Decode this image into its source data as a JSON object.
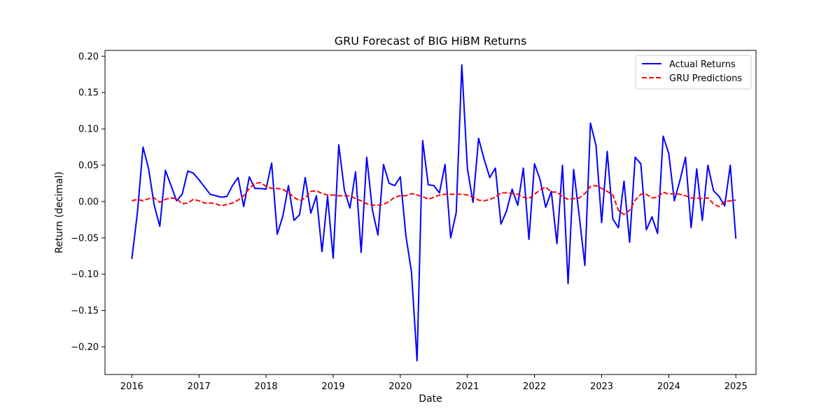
{
  "chart_data": {
    "type": "line",
    "title": "GRU Forecast of BIG HiBM Returns",
    "xlabel": "Date",
    "ylabel": "Return (decimal)",
    "xlim": [
      2015.6,
      2025.3
    ],
    "ylim": [
      -0.238,
      0.208
    ],
    "x_ticks": [
      2016,
      2017,
      2018,
      2019,
      2020,
      2021,
      2022,
      2023,
      2024,
      2025
    ],
    "x_tick_labels": [
      "2016",
      "2017",
      "2018",
      "2019",
      "2020",
      "2021",
      "2022",
      "2023",
      "2024",
      "2025"
    ],
    "y_ticks": [
      -0.2,
      -0.15,
      -0.1,
      -0.05,
      0.0,
      0.05,
      0.1,
      0.15,
      0.2
    ],
    "y_tick_labels": [
      "−0.20",
      "−0.15",
      "−0.10",
      "−0.05",
      "0.00",
      "0.05",
      "0.10",
      "0.15",
      "0.20"
    ],
    "grid": false,
    "legend_position": "top-right",
    "x_start": "2016-01",
    "x_step": "monthly",
    "series": [
      {
        "name": "Actual Returns",
        "color": "#0000ff",
        "dash": "solid",
        "values": [
          -0.079,
          -0.015,
          0.075,
          0.045,
          -0.005,
          -0.034,
          0.043,
          0.022,
          0.001,
          0.01,
          0.042,
          0.039,
          0.03,
          0.02,
          0.01,
          0.008,
          0.006,
          0.007,
          0.022,
          0.033,
          -0.007,
          0.034,
          0.018,
          0.018,
          0.017,
          0.053,
          -0.045,
          -0.02,
          0.022,
          -0.026,
          -0.018,
          0.033,
          -0.016,
          0.008,
          -0.069,
          0.007,
          -0.078,
          0.078,
          0.016,
          -0.009,
          0.041,
          -0.07,
          0.061,
          -0.011,
          -0.046,
          0.051,
          0.025,
          0.022,
          0.034,
          -0.047,
          -0.097,
          -0.219,
          0.084,
          0.023,
          0.022,
          0.012,
          0.051,
          -0.05,
          -0.015,
          0.188,
          0.045,
          -0.001,
          0.087,
          0.058,
          0.033,
          0.046,
          -0.031,
          -0.013,
          0.017,
          -0.005,
          0.046,
          -0.052,
          0.052,
          0.03,
          -0.008,
          0.014,
          -0.058,
          0.05,
          -0.113,
          0.044,
          -0.02,
          -0.088,
          0.108,
          0.077,
          -0.029,
          0.069,
          -0.024,
          -0.036,
          0.028,
          -0.056,
          0.061,
          0.052,
          -0.039,
          -0.021,
          -0.044,
          0.09,
          0.066,
          0.001,
          0.029,
          0.061,
          -0.036,
          0.045,
          -0.026,
          0.05,
          0.015,
          0.007,
          -0.006,
          0.05,
          -0.051
        ]
      },
      {
        "name": "GRU Predictions",
        "color": "#ff0000",
        "dash": "dashed",
        "values": [
          0.001,
          0.003,
          0.001,
          0.004,
          0.005,
          -0.001,
          0.003,
          0.005,
          0.004,
          -0.003,
          -0.002,
          0.003,
          0.001,
          -0.002,
          -0.002,
          -0.003,
          -0.006,
          -0.004,
          -0.002,
          0.002,
          0.008,
          0.018,
          0.025,
          0.026,
          0.021,
          0.018,
          0.018,
          0.017,
          0.012,
          0.006,
          0.001,
          0.005,
          0.014,
          0.015,
          0.011,
          0.009,
          0.009,
          0.008,
          0.008,
          0.008,
          0.004,
          0.001,
          -0.003,
          -0.005,
          -0.005,
          -0.004,
          0.0,
          0.006,
          0.008,
          0.008,
          0.011,
          0.009,
          0.007,
          0.003,
          0.006,
          0.009,
          0.01,
          0.01,
          0.01,
          0.01,
          0.009,
          0.006,
          0.002,
          0.001,
          0.003,
          0.006,
          0.012,
          0.012,
          0.011,
          0.01,
          0.006,
          0.004,
          0.01,
          0.016,
          0.02,
          0.013,
          0.013,
          0.007,
          0.003,
          0.004,
          0.005,
          0.011,
          0.021,
          0.022,
          0.018,
          0.014,
          0.009,
          -0.012,
          -0.018,
          -0.012,
          0.002,
          0.01,
          0.01,
          0.005,
          0.006,
          0.013,
          0.01,
          0.011,
          0.01,
          0.008,
          0.005,
          0.005,
          0.004,
          0.005,
          -0.003,
          -0.007,
          0.0,
          0.001,
          0.002
        ]
      }
    ]
  }
}
